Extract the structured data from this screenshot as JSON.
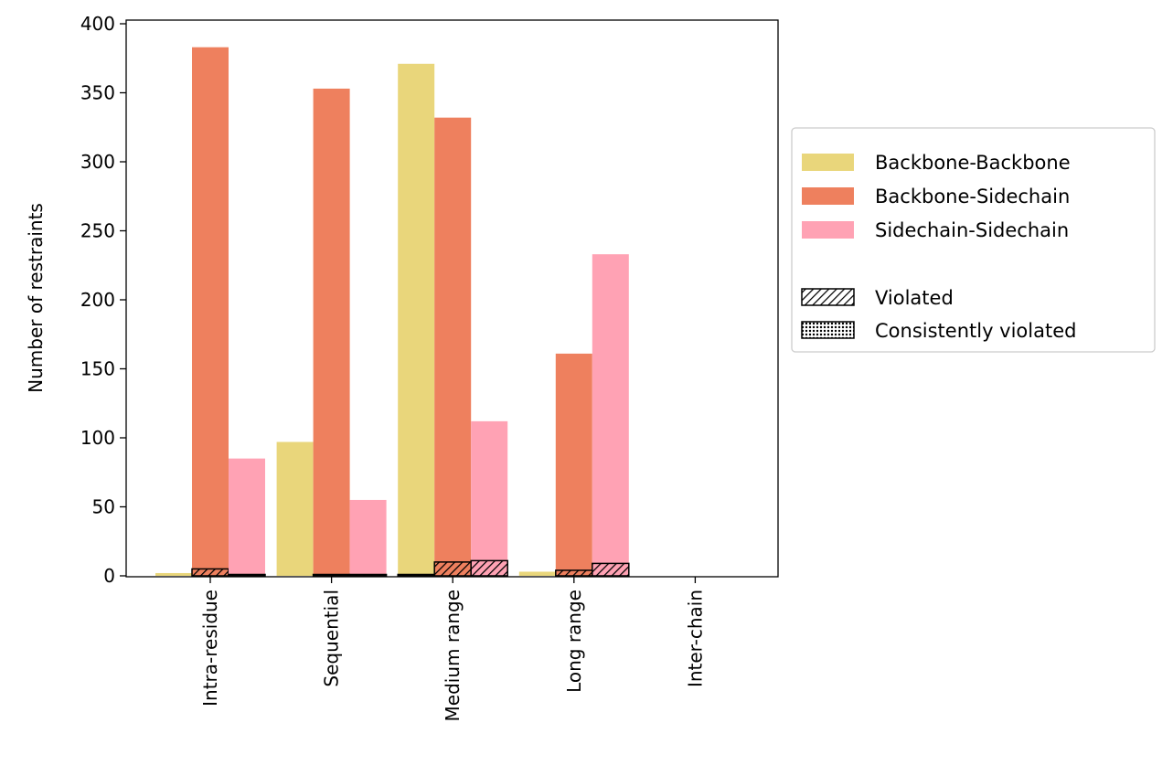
{
  "chart_data": {
    "type": "bar",
    "title": "",
    "xlabel": "",
    "ylabel": "Number of restraints",
    "ylim": [
      0,
      400
    ],
    "yticks": [
      0,
      50,
      100,
      150,
      200,
      250,
      300,
      350,
      400
    ],
    "categories": [
      "Intra-residue",
      "Sequential",
      "Medium range",
      "Long range",
      "Inter-chain"
    ],
    "series": [
      {
        "name": "Backbone-Backbone",
        "color": "#e9d67b",
        "values": [
          2,
          97,
          371,
          3,
          0
        ],
        "violated": [
          0,
          0,
          1,
          0,
          0
        ]
      },
      {
        "name": "Backbone-Sidechain",
        "color": "#ee805e",
        "values": [
          383,
          353,
          332,
          161,
          0
        ],
        "violated": [
          5,
          1,
          10,
          4,
          0
        ]
      },
      {
        "name": "Sidechain-Sidechain",
        "color": "#ffa2b4",
        "values": [
          85,
          55,
          112,
          233,
          0
        ],
        "violated": [
          1,
          1,
          11,
          9,
          0
        ]
      }
    ],
    "hatch_legend": [
      {
        "name": "Violated",
        "pattern": "diagonal-hatch"
      },
      {
        "name": "Consistently violated",
        "pattern": "dot-hatch"
      }
    ],
    "grid": false,
    "legend_position": "right-outside"
  }
}
